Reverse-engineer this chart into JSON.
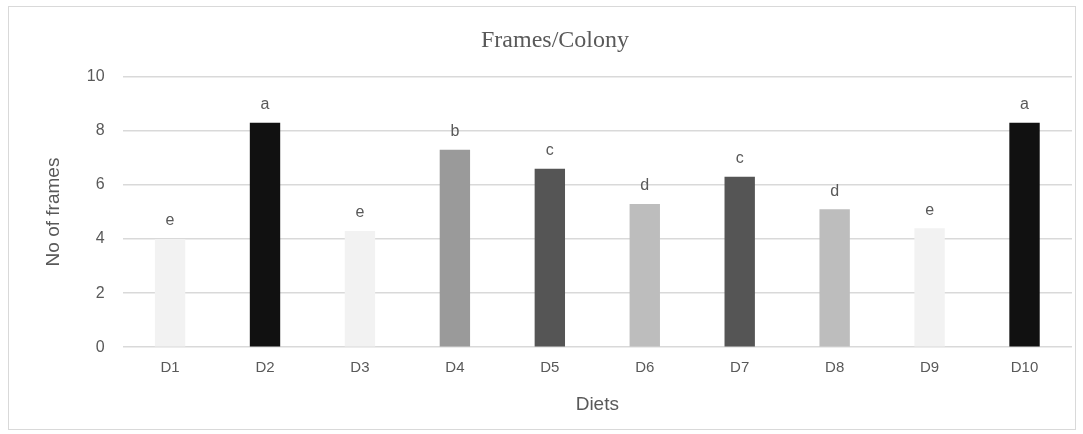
{
  "chart_data": {
    "type": "bar",
    "title": "Frames/Colony",
    "xlabel": "Diets",
    "ylabel": "No of frames",
    "categories": [
      "D1",
      "D2",
      "D3",
      "D4",
      "D5",
      "D6",
      "D7",
      "D8",
      "D9",
      "D10"
    ],
    "values": [
      4.0,
      8.3,
      4.3,
      7.3,
      6.6,
      5.3,
      6.3,
      5.1,
      4.4,
      8.3
    ],
    "colors": [
      "#f2f2f2",
      "#111111",
      "#f2f2f2",
      "#9a9a9a",
      "#555555",
      "#bdbdbd",
      "#555555",
      "#bdbdbd",
      "#f2f2f2",
      "#111111"
    ],
    "ylim": [
      0,
      10
    ],
    "yticks": [
      0,
      2,
      4,
      6,
      8,
      10
    ],
    "grid": "y",
    "legend": false,
    "annotations": [
      {
        "text": "e",
        "x": "D1",
        "y": 4.0
      },
      {
        "text": "a",
        "x": "D2",
        "y": 8.3
      },
      {
        "text": "e",
        "x": "D3",
        "y": 4.3
      },
      {
        "text": "b",
        "x": "D4",
        "y": 7.3
      },
      {
        "text": "c",
        "x": "D5",
        "y": 6.6
      },
      {
        "text": "d",
        "x": "D6",
        "y": 5.3
      },
      {
        "text": "c",
        "x": "D7",
        "y": 6.3
      },
      {
        "text": "d",
        "x": "D8",
        "y": 5.1
      },
      {
        "text": "e",
        "x": "D9",
        "y": 4.4
      },
      {
        "text": "a",
        "x": "D10",
        "y": 8.3
      }
    ]
  }
}
